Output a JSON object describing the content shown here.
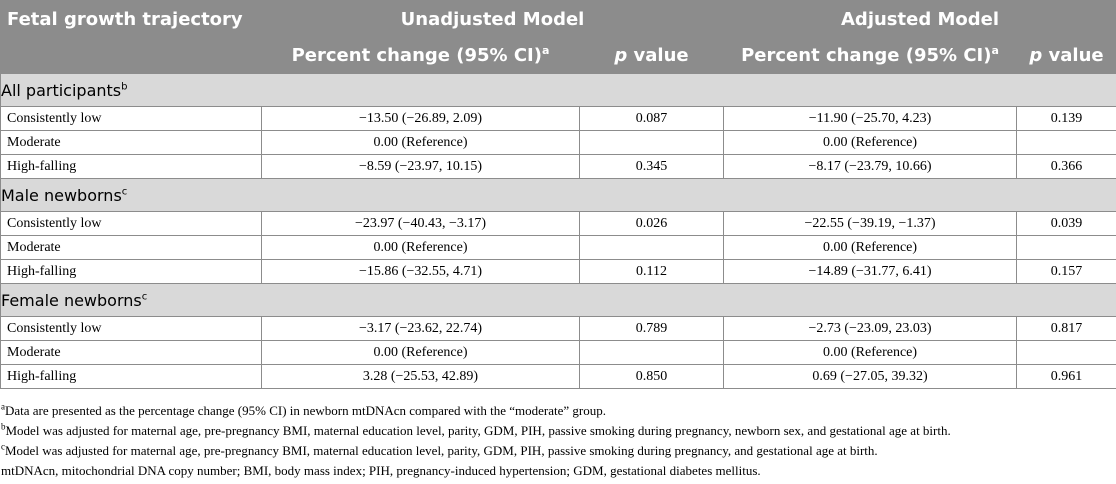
{
  "header": {
    "row_label": "Fetal growth trajectory",
    "unadjusted_model": "Unadjusted Model",
    "adjusted_model": "Adjusted Model",
    "percent_change": "Percent change (95% CI)",
    "percent_change_sup": "a",
    "p_letter": "p",
    "p_word": " value"
  },
  "groups": [
    {
      "title": "All participants",
      "sup": "b",
      "rows": [
        {
          "label": "Consistently low",
          "unadj_pct": "−13.50 (−26.89, 2.09)",
          "unadj_p": "0.087",
          "adj_pct": "−11.90 (−25.70, 4.23)",
          "adj_p": "0.139"
        },
        {
          "label": "Moderate",
          "unadj_pct": "0.00 (Reference)",
          "unadj_p": "",
          "adj_pct": "0.00 (Reference)",
          "adj_p": ""
        },
        {
          "label": "High-falling",
          "unadj_pct": "−8.59 (−23.97, 10.15)",
          "unadj_p": "0.345",
          "adj_pct": "−8.17 (−23.79, 10.66)",
          "adj_p": "0.366"
        }
      ]
    },
    {
      "title": "Male newborns",
      "sup": "c",
      "rows": [
        {
          "label": "Consistently low",
          "unadj_pct": "−23.97 (−40.43, −3.17)",
          "unadj_p": "0.026",
          "adj_pct": "−22.55 (−39.19, −1.37)",
          "adj_p": "0.039"
        },
        {
          "label": "Moderate",
          "unadj_pct": "0.00 (Reference)",
          "unadj_p": "",
          "adj_pct": "0.00 (Reference)",
          "adj_p": ""
        },
        {
          "label": "High-falling",
          "unadj_pct": "−15.86 (−32.55, 4.71)",
          "unadj_p": "0.112",
          "adj_pct": "−14.89 (−31.77, 6.41)",
          "adj_p": "0.157"
        }
      ]
    },
    {
      "title": "Female newborns",
      "sup": "c",
      "rows": [
        {
          "label": "Consistently low",
          "unadj_pct": "−3.17 (−23.62, 22.74)",
          "unadj_p": "0.789",
          "adj_pct": "−2.73 (−23.09, 23.03)",
          "adj_p": "0.817"
        },
        {
          "label": "Moderate",
          "unadj_pct": "0.00 (Reference)",
          "unadj_p": "",
          "adj_pct": "0.00 (Reference)",
          "adj_p": ""
        },
        {
          "label": "High-falling",
          "unadj_pct": "3.28 (−25.53, 42.89)",
          "unadj_p": "0.850",
          "adj_pct": "0.69 (−27.05, 39.32)",
          "adj_p": "0.961"
        }
      ]
    }
  ],
  "footnotes": [
    {
      "sup": "a",
      "text": "Data are presented as the percentage change (95% CI) in newborn mtDNAcn compared with the “moderate” group."
    },
    {
      "sup": "b",
      "text": "Model was adjusted for maternal age, pre-pregnancy BMI, maternal education level, parity, GDM, PIH, passive smoking during pregnancy, newborn sex, and gestational age at birth."
    },
    {
      "sup": "c",
      "text": "Model was adjusted for maternal age, pre-pregnancy BMI, maternal education level, parity, GDM, PIH, passive smoking during pregnancy, and gestational age at birth."
    },
    {
      "sup": "",
      "text": "mtDNAcn, mitochondrial DNA copy number; BMI, body mass index; PIH, pregnancy-induced hypertension; GDM, gestational diabetes mellitus."
    }
  ],
  "colors": {
    "header_bg": "#8c8c8c",
    "group_bg": "#d9d9d9",
    "border": "#8c8c8c"
  }
}
